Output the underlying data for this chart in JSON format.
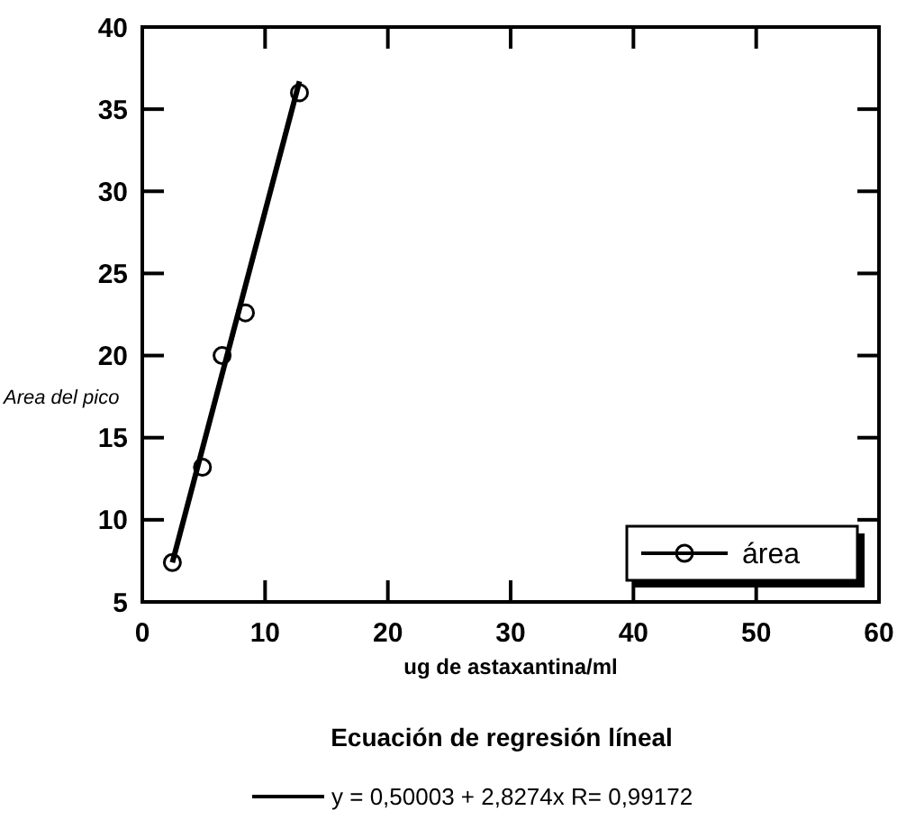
{
  "chart_data": {
    "type": "scatter",
    "xlabel": "ug de astaxantina/ml",
    "ylabel": "Area del pico",
    "xlim": [
      0,
      60
    ],
    "xticks": [
      0,
      10,
      20,
      30,
      40,
      50,
      60
    ],
    "ylim": [
      5,
      40
    ],
    "yticks": [
      5,
      10,
      15,
      20,
      25,
      30,
      35,
      40
    ],
    "series": [
      {
        "name": "área",
        "color": "#000000",
        "marker": "circle",
        "x": [
          2.45,
          4.9,
          6.5,
          8.4,
          12.8
        ],
        "values": [
          7.4,
          13.2,
          20.0,
          22.6,
          36.0
        ]
      },
      {
        "name": "y = 0,50003 + 2,8274x R= 0,99172",
        "type": "line",
        "color": "#000000",
        "x": [
          2.45,
          12.8
        ],
        "values": [
          7.4,
          36.7
        ]
      }
    ],
    "legend": "bottom right",
    "grid": false,
    "annotations": [
      "Ecuación de regresión líneal"
    ]
  }
}
